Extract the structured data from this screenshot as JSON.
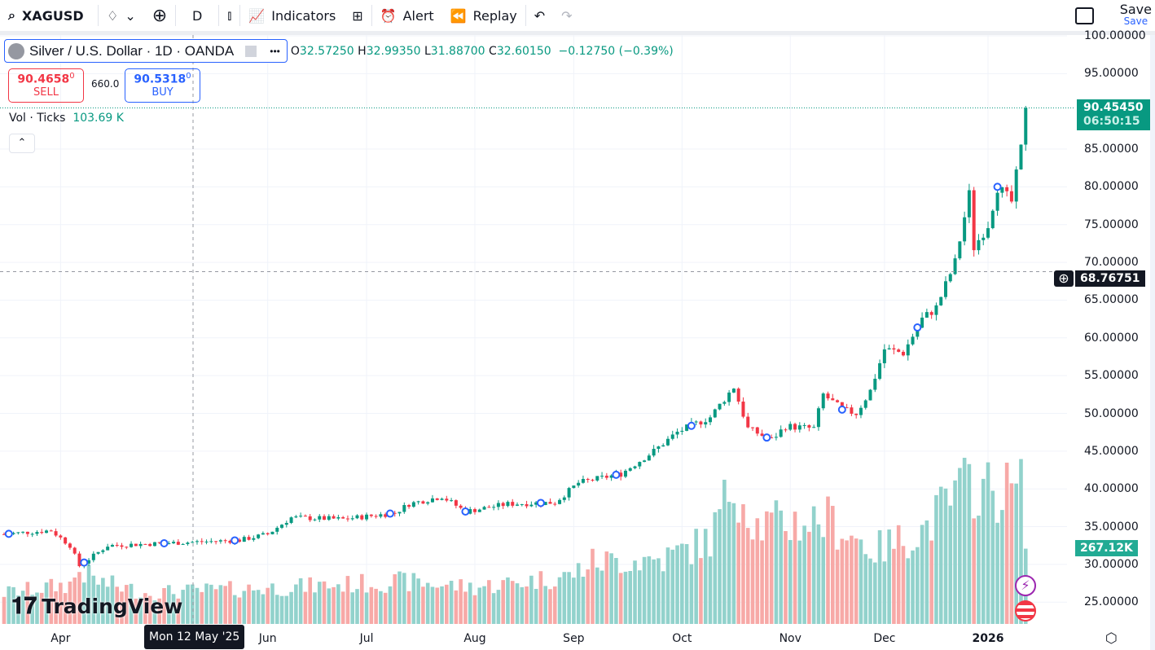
{
  "toolbar": {
    "symbol": "XAGUSD",
    "interval": "D",
    "indicators": "Indicators",
    "alert": "Alert",
    "replay": "Replay",
    "save": "Save",
    "save_sub": "Save"
  },
  "legend": {
    "title": "Silver / U.S. Dollar · 1D · OANDA",
    "open": "32.57250",
    "high": "32.99350",
    "low": "31.88700",
    "close": "32.60150",
    "change": "−0.12750 (−0.39%)",
    "o": "O",
    "h": "H",
    "l": "L",
    "c": "C"
  },
  "trade": {
    "sell_price": "90.4658",
    "sell_sup": "0",
    "sell": "SELL",
    "spread": "660.0",
    "buy_price": "90.5318",
    "buy_sup": "0",
    "buy": "BUY"
  },
  "volume": {
    "label": "Vol · Ticks",
    "value": "103.69 K",
    "last_tag": "267.12K"
  },
  "price_tag": {
    "price": "90.45450",
    "countdown": "06:50:15"
  },
  "crosshair": {
    "price": "68.76751",
    "date": "Mon 12 May '25"
  },
  "brand": "TradingView",
  "colors": {
    "up": "#089981",
    "down": "#f23645",
    "vol_up": "#92d2cc",
    "vol_down": "#f7a9a7",
    "accent": "#2962ff"
  },
  "chart_data": {
    "type": "candlestick",
    "ylim": [
      22,
      101
    ],
    "y_ticks": [
      "100.00000",
      "95.00000",
      "85.00000",
      "80.00000",
      "75.00000",
      "70.00000",
      "65.00000",
      "60.00000",
      "55.00000",
      "50.00000",
      "45.00000",
      "40.00000",
      "35.00000",
      "30.00000",
      "25.00000"
    ],
    "y_tick_values": [
      100,
      95,
      85,
      80,
      75,
      70,
      65,
      60,
      55,
      50,
      45,
      40,
      35,
      30,
      25
    ],
    "x_ticks": [
      {
        "label": "Apr",
        "bar": 12
      },
      {
        "label": "Jun",
        "bar": 56
      },
      {
        "label": "Jul",
        "bar": 77
      },
      {
        "label": "Aug",
        "bar": 100
      },
      {
        "label": "Sep",
        "bar": 121
      },
      {
        "label": "Oct",
        "bar": 144
      },
      {
        "label": "Nov",
        "bar": 167
      },
      {
        "label": "Dec",
        "bar": 187
      },
      {
        "label": "2026",
        "bar": 209
      }
    ],
    "close_anchors": [
      [
        0,
        34.0
      ],
      [
        10,
        34.5
      ],
      [
        14,
        32.5
      ],
      [
        16,
        29.8
      ],
      [
        22,
        32.5
      ],
      [
        34,
        32.8
      ],
      [
        50,
        33.2
      ],
      [
        56,
        34.0
      ],
      [
        61,
        36.2
      ],
      [
        72,
        36.0
      ],
      [
        83,
        36.8
      ],
      [
        86,
        38.0
      ],
      [
        93,
        39.0
      ],
      [
        98,
        37.0
      ],
      [
        107,
        38.0
      ],
      [
        117,
        38.2
      ],
      [
        122,
        40.8
      ],
      [
        131,
        42.0
      ],
      [
        138,
        45.0
      ],
      [
        143,
        47.5
      ],
      [
        150,
        49.5
      ],
      [
        155,
        53.5
      ],
      [
        158,
        48.0
      ],
      [
        163,
        46.5
      ],
      [
        166,
        48.3
      ],
      [
        172,
        48.0
      ],
      [
        174,
        52.5
      ],
      [
        178,
        50.5
      ],
      [
        181,
        50.0
      ],
      [
        184,
        53.0
      ],
      [
        187,
        58.5
      ],
      [
        191,
        58.0
      ],
      [
        195,
        62.5
      ],
      [
        198,
        64.0
      ],
      [
        202,
        70.0
      ],
      [
        205,
        79.0
      ],
      [
        206,
        72.0
      ],
      [
        209,
        75.0
      ],
      [
        211,
        80.0
      ],
      [
        214,
        78.0
      ],
      [
        216,
        85.0
      ],
      [
        217,
        90.45
      ]
    ],
    "volume_k_anchors": [
      [
        0,
        110
      ],
      [
        14,
        140
      ],
      [
        16,
        190
      ],
      [
        20,
        150
      ],
      [
        30,
        110
      ],
      [
        60,
        130
      ],
      [
        85,
        150
      ],
      [
        100,
        130
      ],
      [
        120,
        170
      ],
      [
        125,
        220
      ],
      [
        140,
        230
      ],
      [
        150,
        300
      ],
      [
        155,
        510
      ],
      [
        160,
        350
      ],
      [
        175,
        370
      ],
      [
        185,
        260
      ],
      [
        195,
        330
      ],
      [
        200,
        420
      ],
      [
        205,
        500
      ],
      [
        210,
        470
      ],
      [
        216,
        480
      ],
      [
        217,
        267
      ]
    ],
    "event_bars": [
      1,
      17,
      34,
      49,
      82,
      98,
      114,
      130,
      146,
      162,
      178,
      194,
      211
    ]
  }
}
